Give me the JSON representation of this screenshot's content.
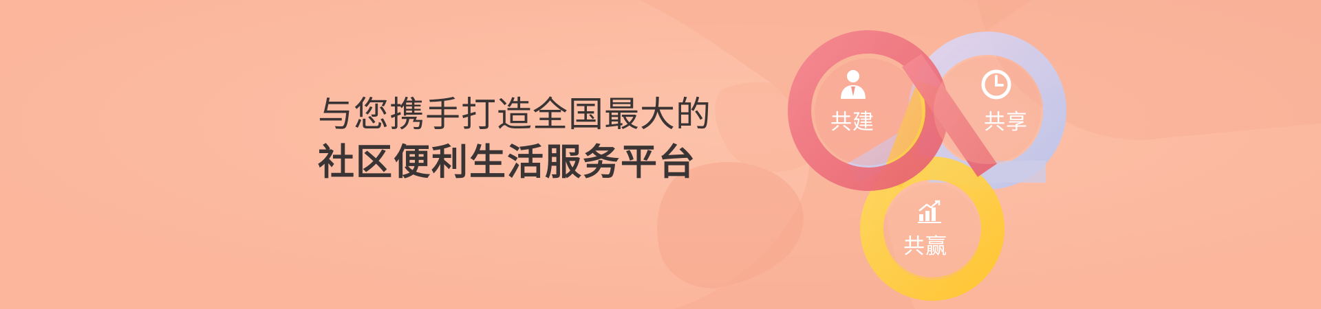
{
  "banner": {
    "headline_line1": "与您携手打造全国最大的",
    "headline_line2": "社区便利生活服务平台"
  },
  "logo": {
    "labels": {
      "build": "共建",
      "share": "共享",
      "win": "共赢"
    },
    "icons": {
      "build": "person-icon",
      "share": "clock-icon",
      "win": "growth-chart-icon"
    },
    "colors": {
      "build": "#ef7c87",
      "share": "#cdc8ef",
      "win": "#ffd03f"
    }
  },
  "colors": {
    "background": "#fbb69c",
    "headline": "#3a3434"
  }
}
